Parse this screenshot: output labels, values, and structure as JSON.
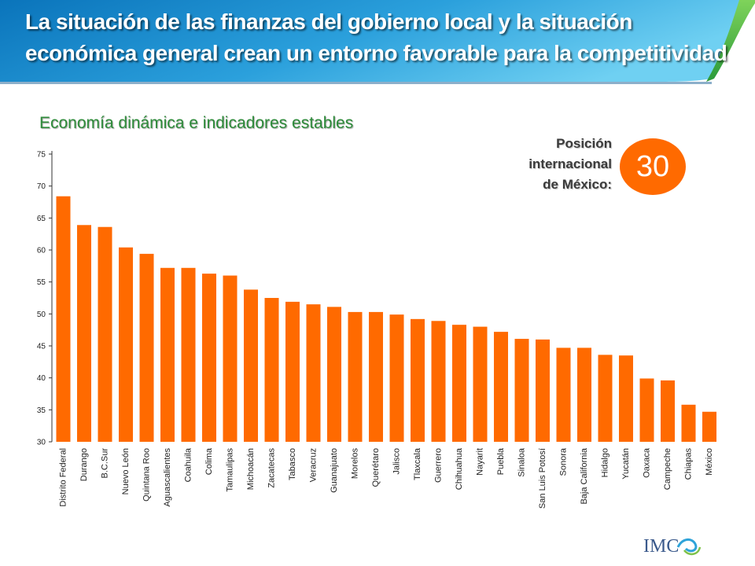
{
  "header": {
    "title_line1": "La situación de las finanzas del gobierno local y la situación",
    "title_line2": "económica general crean un entorno favorable para la competitividad"
  },
  "subtitle": "Economía dinámica e indicadores estables",
  "ranking": {
    "label_line1": "Posición",
    "label_line2": "internacional",
    "label_line3": "de México:",
    "value": "30"
  },
  "logo_text": "IMC",
  "colors": {
    "banner_dark": "#0d7fc2",
    "banner_light": "#56c2ee",
    "banner_edge": "#3aa93a",
    "bar": "#ff6a00",
    "subtitle": "#2e8b3a"
  },
  "chart_data": {
    "type": "bar",
    "categories": [
      "Distrito Federal",
      "Durango",
      "B.C.Sur",
      "Nuevo León",
      "Quintana Roo",
      "Aguascalientes",
      "Coahuila",
      "Colima",
      "Tamaulipas",
      "Michoacán",
      "Zacatecas",
      "Tabasco",
      "Veracruz",
      "Guanajuato",
      "Morelos",
      "Querétaro",
      "Jalisco",
      "Tlaxcala",
      "Guerrero",
      "Chihuahua",
      "Nayarit",
      "Puebla",
      "Sinaloa",
      "San Luis Potosí",
      "Sonora",
      "Baja California",
      "Hidalgo",
      "Yucatán",
      "Oaxaca",
      "Campeche",
      "Chiapas",
      "México"
    ],
    "values": [
      68.4,
      63.9,
      63.6,
      60.4,
      59.4,
      57.2,
      57.2,
      56.3,
      56.0,
      53.8,
      52.5,
      51.9,
      51.5,
      51.1,
      50.3,
      50.3,
      49.9,
      49.2,
      48.9,
      48.3,
      48.0,
      47.2,
      46.1,
      46.0,
      44.7,
      44.7,
      43.6,
      43.5,
      39.9,
      39.6,
      35.8,
      34.7
    ],
    "ylim": [
      30,
      75
    ],
    "yticks": [
      30,
      35,
      40,
      45,
      50,
      55,
      60,
      65,
      70,
      75
    ],
    "grid": false,
    "legend": "none"
  }
}
